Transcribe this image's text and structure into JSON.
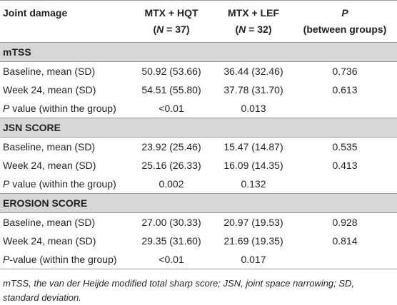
{
  "header": {
    "columns": [
      {
        "line1": "Joint damage"
      },
      {
        "line1": "MTX + HQT",
        "line2_pre": "(",
        "line2_italic": "N",
        "line2_post": " = 37)"
      },
      {
        "line1": "MTX + LEF",
        "line2_pre": "(",
        "line2_italic": "N",
        "line2_post": " = 32)"
      },
      {
        "line1_italic": "P",
        "line2": "(between groups)"
      }
    ]
  },
  "sections": [
    {
      "title": "mTSS",
      "rows": [
        {
          "label": "Baseline, mean (SD)",
          "cells": [
            "50.92 (53.66)",
            "36.44 (32.46)",
            "0.736"
          ]
        },
        {
          "label": "Week 24, mean (SD)",
          "cells": [
            "54.51 (55.80)",
            "37.78 (31.70)",
            "0.613"
          ]
        },
        {
          "label_italic": "P",
          "label": " value (within the group)",
          "cells": [
            "<0.01",
            "0.013",
            ""
          ]
        }
      ]
    },
    {
      "title": "JSN SCORE",
      "rows": [
        {
          "label": "Baseline, mean (SD)",
          "cells": [
            "23.92 (25.46)",
            "15.47 (14.87)",
            "0.535"
          ]
        },
        {
          "label": "Week 24, mean (SD)",
          "cells": [
            "25.16 (26.33)",
            "16.09 (14.35)",
            "0.413"
          ]
        },
        {
          "label_italic": "P",
          "label": " value (within the group)",
          "cells": [
            "0.002",
            "0.132",
            ""
          ]
        }
      ]
    },
    {
      "title": "EROSION SCORE",
      "rows": [
        {
          "label": "Baseline, mean (SD)",
          "cells": [
            "27.00 (30.33)",
            "20.97 (19.53)",
            "0.928"
          ]
        },
        {
          "label": "Week 24, mean (SD)",
          "cells": [
            "29.35 (31.60)",
            "21.69 (19.35)",
            "0.814"
          ]
        },
        {
          "label_italic": "P",
          "label": "-value (within the group)",
          "cells": [
            "<0.01",
            "0.017",
            ""
          ]
        }
      ]
    }
  ],
  "footnote": "mTSS, the van der Heijde modified total sharp score; JSN, joint space narrowing; SD, standard deviation."
}
